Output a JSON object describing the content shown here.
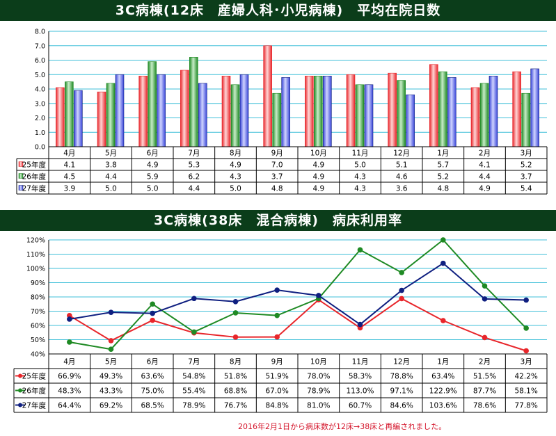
{
  "colors": {
    "banner_bg": "#0b3d1a",
    "series_1": "#e8262b",
    "series_2": "#1f8a24",
    "series_3": "#0f1f80",
    "gridline": "#3fbfd8",
    "note_text": "#d4142a"
  },
  "chart_data": [
    {
      "type": "bar",
      "title": "3C病棟(12床　産婦人科･小児病棟)　平均在院日数",
      "categories": [
        "4月",
        "5月",
        "6月",
        "7月",
        "8月",
        "9月",
        "10月",
        "11月",
        "12月",
        "1月",
        "2月",
        "3月"
      ],
      "ylim": [
        0,
        8
      ],
      "yticks": [
        "0.0",
        "1.0",
        "2.0",
        "3.0",
        "4.0",
        "5.0",
        "6.0",
        "7.0",
        "8.0"
      ],
      "grid": true,
      "legend": "data-table-below",
      "series": [
        {
          "name": "25年度",
          "values": [
            4.1,
            3.8,
            4.9,
            5.3,
            4.9,
            7.0,
            4.9,
            5.0,
            5.1,
            5.7,
            4.1,
            5.2
          ],
          "labels": [
            "4.1",
            "3.8",
            "4.9",
            "5.3",
            "4.9",
            "7.0",
            "4.9",
            "5.0",
            "5.1",
            "5.7",
            "4.1",
            "5.2"
          ]
        },
        {
          "name": "26年度",
          "values": [
            4.5,
            4.4,
            5.9,
            6.2,
            4.3,
            3.7,
            4.9,
            4.3,
            4.6,
            5.2,
            4.4,
            3.7
          ],
          "labels": [
            "4.5",
            "4.4",
            "5.9",
            "6.2",
            "4.3",
            "3.7",
            "4.9",
            "4.3",
            "4.6",
            "5.2",
            "4.4",
            "3.7"
          ]
        },
        {
          "name": "27年度",
          "values": [
            3.9,
            5.0,
            5.0,
            4.4,
            5.0,
            4.8,
            4.9,
            4.3,
            3.6,
            4.8,
            4.9,
            5.4
          ],
          "labels": [
            "3.9",
            "5.0",
            "5.0",
            "4.4",
            "5.0",
            "4.8",
            "4.9",
            "4.3",
            "3.6",
            "4.8",
            "4.9",
            "5.4"
          ]
        }
      ]
    },
    {
      "type": "line",
      "title": "3C病棟(38床　混合病棟)　病床利用率",
      "categories": [
        "4月",
        "5月",
        "6月",
        "7月",
        "8月",
        "9月",
        "10月",
        "11月",
        "12月",
        "1月",
        "2月",
        "3月"
      ],
      "ylim": [
        40,
        120
      ],
      "yticks": [
        "40%",
        "50%",
        "60%",
        "70%",
        "80%",
        "90%",
        "100%",
        "110%",
        "120%"
      ],
      "grid": true,
      "legend": "data-table-below",
      "series": [
        {
          "name": "25年度",
          "values": [
            66.9,
            49.3,
            63.6,
            54.8,
            51.8,
            51.9,
            78.0,
            58.3,
            78.8,
            63.4,
            51.5,
            42.2
          ],
          "labels": [
            "66.9%",
            "49.3%",
            "63.6%",
            "54.8%",
            "51.8%",
            "51.9%",
            "78.0%",
            "58.3%",
            "78.8%",
            "63.4%",
            "51.5%",
            "42.2%"
          ]
        },
        {
          "name": "26年度",
          "values": [
            48.3,
            43.3,
            75.0,
            55.4,
            68.8,
            67.0,
            78.9,
            113.0,
            97.1,
            122.9,
            87.7,
            58.1
          ],
          "labels": [
            "48.3%",
            "43.3%",
            "75.0%",
            "55.4%",
            "68.8%",
            "67.0%",
            "78.9%",
            "113.0%",
            "97.1%",
            "122.9%",
            "87.7%",
            "58.1%"
          ]
        },
        {
          "name": "27年度",
          "values": [
            64.4,
            69.2,
            68.5,
            78.9,
            76.7,
            84.8,
            81.0,
            60.7,
            84.6,
            103.6,
            78.6,
            77.8
          ],
          "labels": [
            "64.4%",
            "69.2%",
            "68.5%",
            "78.9%",
            "76.7%",
            "84.8%",
            "81.0%",
            "60.7%",
            "84.6%",
            "103.6%",
            "78.6%",
            "77.8%"
          ]
        }
      ]
    }
  ],
  "note": "2016年2月1日から病床数が12床→38床と再編されました。"
}
